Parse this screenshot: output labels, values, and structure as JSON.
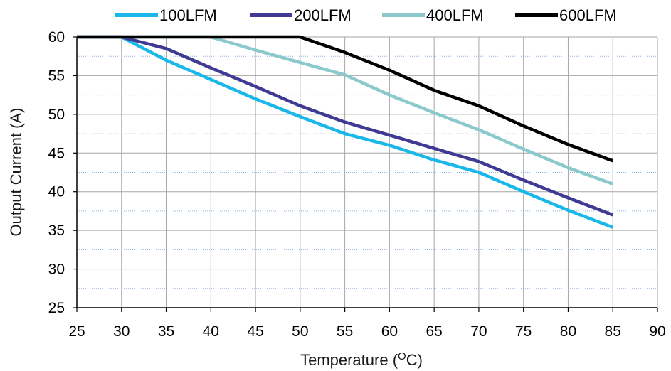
{
  "chart_data": {
    "type": "line",
    "title": "",
    "xlabel": "Temperature (",
    "xlabel_sup": "O",
    "xlabel_unit": "C)",
    "ylabel": "Output Current (A)",
    "xlim": [
      25,
      90
    ],
    "ylim": [
      25,
      60
    ],
    "x_ticks": [
      "25",
      "30",
      "35",
      "40",
      "45",
      "50",
      "55",
      "60",
      "65",
      "70",
      "75",
      "80",
      "85",
      "90"
    ],
    "y_ticks": [
      "25",
      "30",
      "35",
      "40",
      "45",
      "50",
      "55",
      "60"
    ],
    "grid": true,
    "legend_position": "top",
    "series": [
      {
        "name": "100LFM",
        "color": "#1ab7ea",
        "points": [
          [
            25,
            60
          ],
          [
            30,
            60
          ],
          [
            35,
            57
          ],
          [
            40,
            54.5
          ],
          [
            45,
            52
          ],
          [
            50,
            49.7
          ],
          [
            55,
            47.5
          ],
          [
            60,
            46
          ],
          [
            65,
            44.1
          ],
          [
            70,
            42.5
          ],
          [
            75,
            40
          ],
          [
            80,
            37.6
          ],
          [
            85,
            35.4
          ]
        ]
      },
      {
        "name": "200LFM",
        "color": "#3f3b94",
        "points": [
          [
            25,
            60
          ],
          [
            30,
            60
          ],
          [
            35,
            58.5
          ],
          [
            40,
            56
          ],
          [
            45,
            53.6
          ],
          [
            50,
            51.1
          ],
          [
            55,
            49
          ],
          [
            60,
            47.3
          ],
          [
            65,
            45.6
          ],
          [
            70,
            43.9
          ],
          [
            75,
            41.5
          ],
          [
            80,
            39.2
          ],
          [
            85,
            37
          ]
        ]
      },
      {
        "name": "400LFM",
        "color": "#8cc9cd",
        "points": [
          [
            25,
            60
          ],
          [
            30,
            60
          ],
          [
            35,
            60
          ],
          [
            40,
            60
          ],
          [
            45,
            58.3
          ],
          [
            50,
            56.7
          ],
          [
            55,
            55.1
          ],
          [
            60,
            52.5
          ],
          [
            65,
            50.2
          ],
          [
            70,
            48
          ],
          [
            75,
            45.5
          ],
          [
            80,
            43.1
          ],
          [
            85,
            41
          ]
        ]
      },
      {
        "name": "600LFM",
        "color": "#000000",
        "points": [
          [
            25,
            60
          ],
          [
            30,
            60
          ],
          [
            35,
            60
          ],
          [
            40,
            60
          ],
          [
            45,
            60
          ],
          [
            50,
            60
          ],
          [
            55,
            58
          ],
          [
            60,
            55.7
          ],
          [
            65,
            53.1
          ],
          [
            70,
            51.1
          ],
          [
            75,
            48.5
          ],
          [
            80,
            46.1
          ],
          [
            85,
            44
          ]
        ]
      }
    ]
  }
}
